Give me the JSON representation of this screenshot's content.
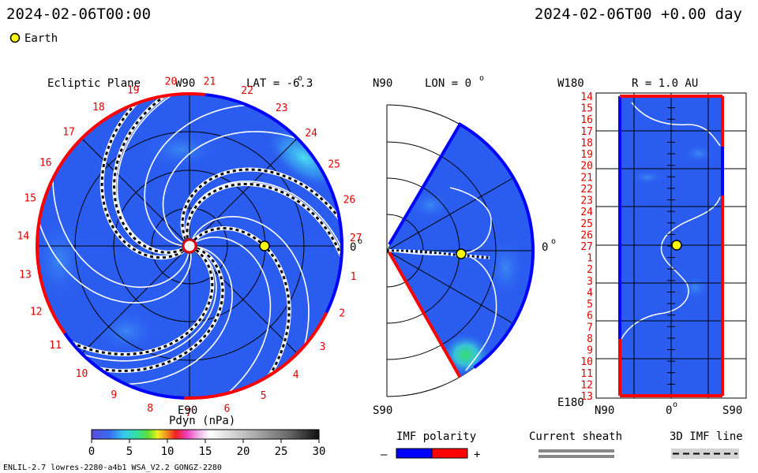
{
  "header": {
    "left_time": "2024-02-06T00:00",
    "right_time": "2024-02-06T00 +0.00 day",
    "earth_label": "Earth"
  },
  "colors": {
    "background_field": "#2a5cf0",
    "positive_polarity": "#ff0000",
    "negative_polarity": "#0000ff",
    "earth": "#ffff00"
  },
  "ecliptic": {
    "title": "Ecliptic Plane",
    "top_label": "W90",
    "bottom_label": "E90",
    "right_label": "0",
    "lat_label": "LAT = -6.3",
    "sector_numbers": [
      "1",
      "2",
      "3",
      "4",
      "5",
      "6",
      "7",
      "8",
      "9",
      "10",
      "11",
      "12",
      "13",
      "14",
      "15",
      "16",
      "17",
      "18",
      "19",
      "20",
      "21",
      "22",
      "23",
      "24",
      "25",
      "26",
      "27"
    ]
  },
  "meridional": {
    "top_label": "N90",
    "bottom_label": "S90",
    "lon_label": "LON = 0",
    "right_label": "0"
  },
  "radial": {
    "title": "R = 1.0 AU",
    "top_left_label": "W180",
    "bottom_left_label": "E180",
    "x_labels": [
      "N90",
      "0",
      "S90"
    ],
    "y_labels": [
      "14",
      "15",
      "16",
      "17",
      "18",
      "19",
      "20",
      "21",
      "22",
      "23",
      "24",
      "25",
      "26",
      "27",
      "1",
      "2",
      "3",
      "4",
      "5",
      "6",
      "7",
      "8",
      "9",
      "10",
      "11",
      "12",
      "13"
    ]
  },
  "chart_data": {
    "type": "heatmap",
    "title": "Pdyn (nPa)",
    "colorbar": {
      "label": "Pdyn (nPa)",
      "ticks": [
        0,
        5,
        10,
        15,
        20,
        25,
        30
      ],
      "range": [
        0,
        30
      ]
    },
    "earth_position": {
      "lat_deg": -6.3,
      "lon_deg": 0,
      "r_au": 1.0
    }
  },
  "legends": {
    "imf_polarity": {
      "title": "IMF polarity",
      "minus": "–",
      "plus": "+"
    },
    "current_sheath": {
      "title": "Current sheath"
    },
    "imf_line": {
      "title": "3D IMF line"
    }
  },
  "footer": {
    "model_info": "ENLIL-2.7 lowres-2280-a4b1 WSA_V2.2 GONGZ-2280"
  }
}
